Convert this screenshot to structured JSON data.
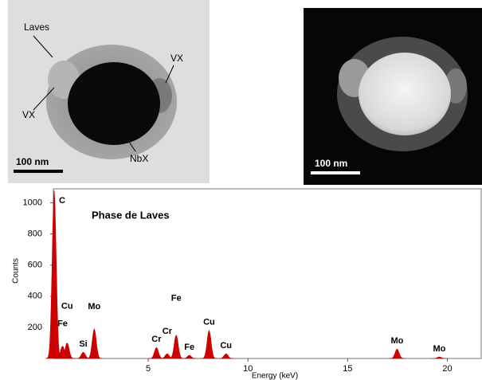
{
  "images": [
    {
      "labels": [
        "Laves",
        "VX",
        "VX",
        "NbX"
      ],
      "scale_bar": "100 nm"
    },
    {
      "scale_bar": "100 nm"
    }
  ],
  "chart_data": {
    "type": "spectrum",
    "title": "Phase de Laves",
    "x_label": "Energy (keV)",
    "y_label": "Counts",
    "x": [
      0.28,
      0.7,
      0.93,
      1.74,
      2.29,
      5.41,
      5.95,
      6.4,
      7.06,
      8.05,
      8.9,
      17.48,
      19.6
    ],
    "values": [
      1080,
      80,
      100,
      40,
      190,
      70,
      30,
      150,
      20,
      180,
      30,
      60,
      10
    ],
    "peak_labels": [
      "C",
      "Fe",
      "Cu",
      "Si",
      "Mo",
      "Cr",
      "Cr",
      "Fe",
      "Fe",
      "Cu",
      "Cu",
      "Mo",
      "Mo"
    ],
    "color": "#cc0000",
    "xlim": [
      0.24,
      21.7
    ],
    "ylim": [
      0,
      1090
    ],
    "xticks": [
      5,
      10,
      15,
      20
    ],
    "yticks": [
      200,
      400,
      600,
      800,
      1000
    ]
  }
}
